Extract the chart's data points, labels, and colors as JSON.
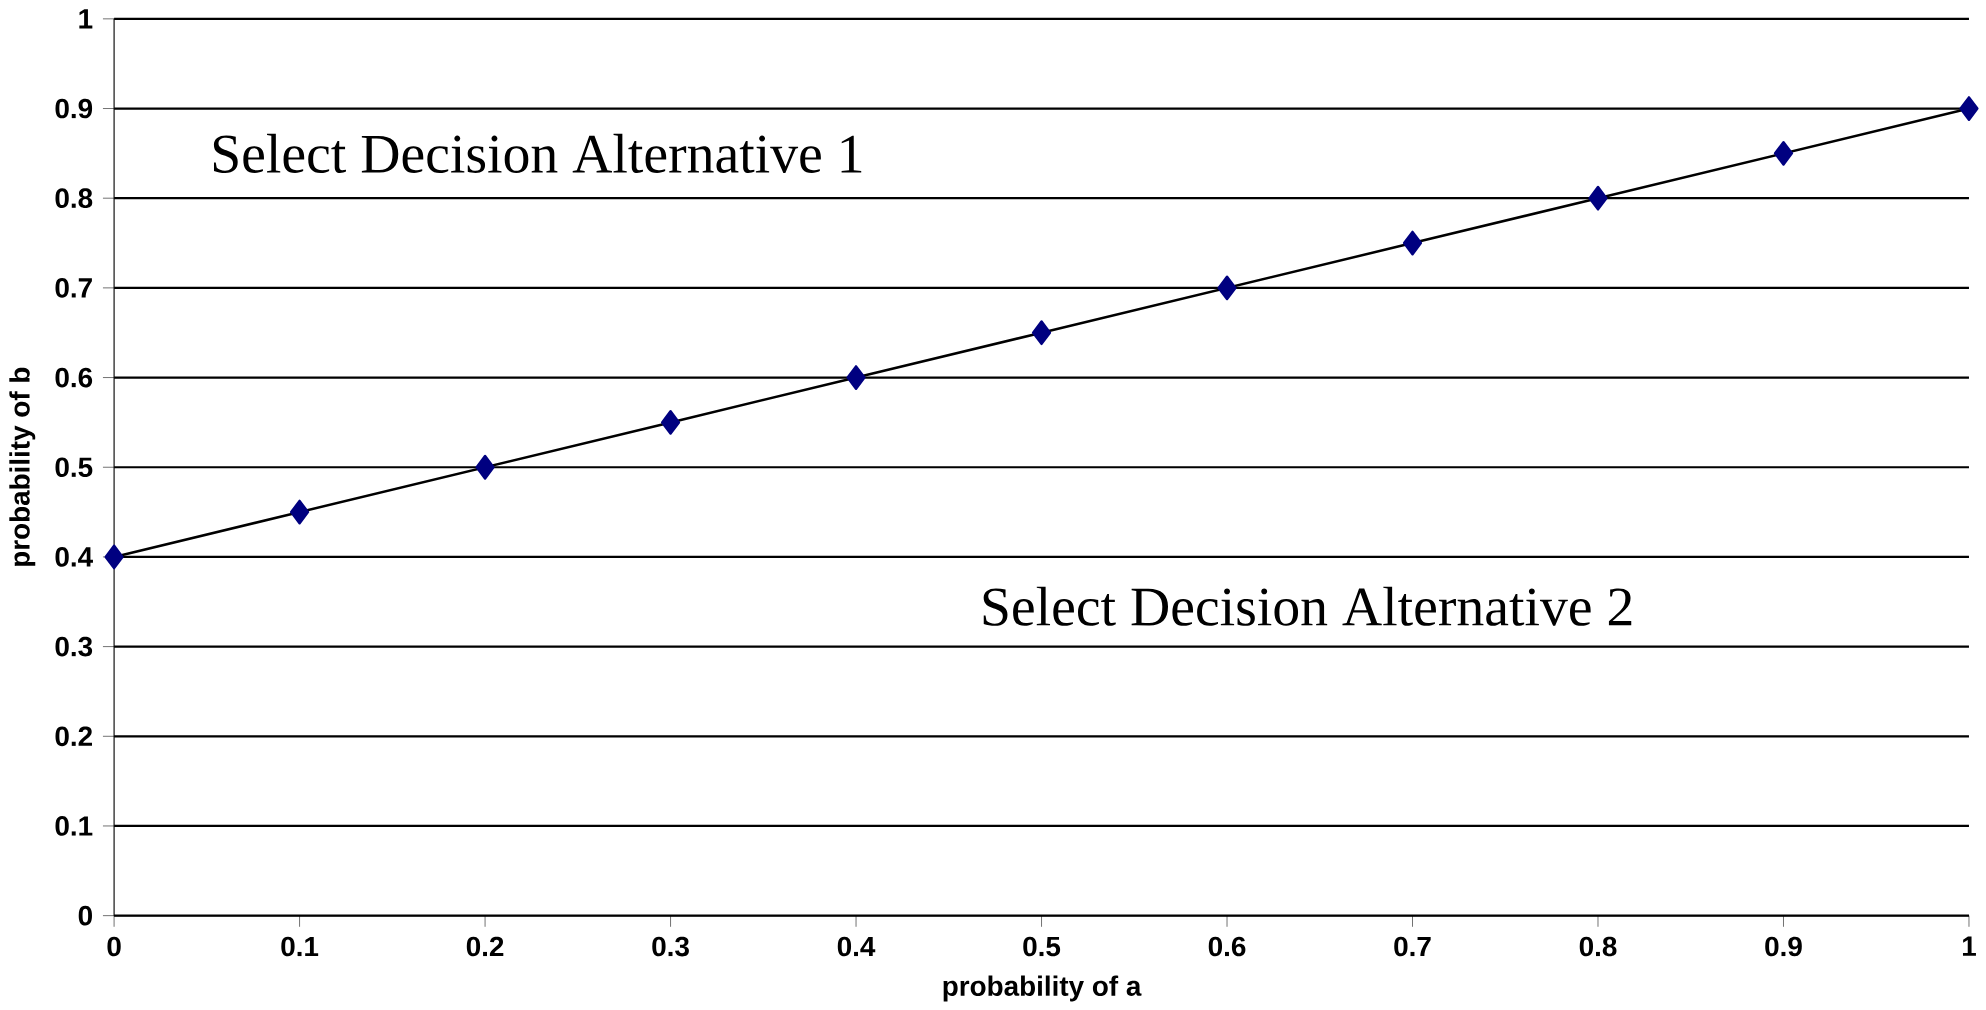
{
  "chart_data": {
    "type": "line",
    "xlabel": "probability of a",
    "ylabel": "probability of b",
    "x": [
      0,
      0.1,
      0.2,
      0.3,
      0.4,
      0.5,
      0.6,
      0.7,
      0.8,
      0.9,
      1
    ],
    "series": [
      {
        "color": "#000080",
        "values": [
          0.4,
          0.45,
          0.5,
          0.55,
          0.6,
          0.65,
          0.7,
          0.75,
          0.8,
          0.85,
          0.9
        ]
      }
    ],
    "xlim": [
      0,
      1
    ],
    "ylim": [
      0,
      1
    ],
    "xticks": [
      0,
      0.1,
      0.2,
      0.3,
      0.4,
      0.5,
      0.6,
      0.7,
      0.8,
      0.9,
      1
    ],
    "yticks": [
      0,
      0.1,
      0.2,
      0.3,
      0.4,
      0.5,
      0.6,
      0.7,
      0.8,
      0.9,
      1
    ],
    "grid": "y",
    "marker": "diamond",
    "line_style": "solid",
    "annotations": [
      "Select Decision Alternative 1",
      "Select Decision Alternative 2"
    ]
  }
}
